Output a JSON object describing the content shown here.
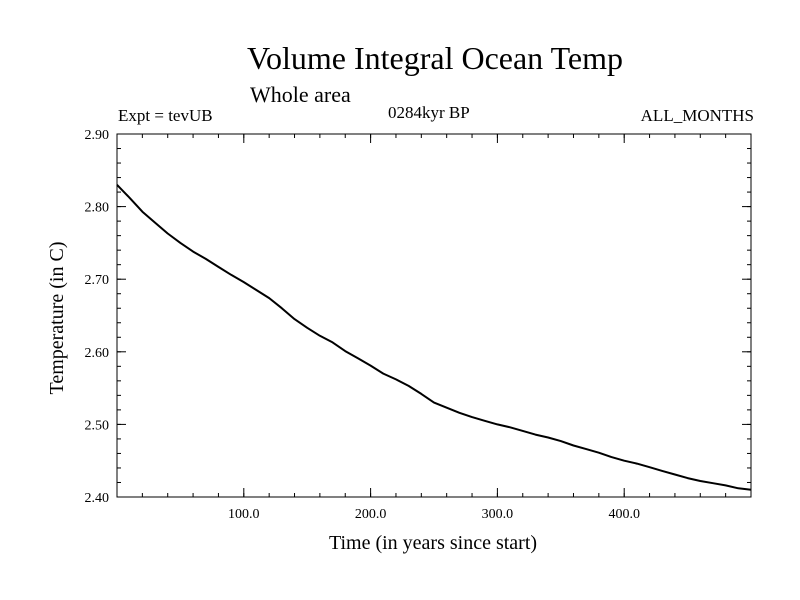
{
  "header": {
    "title": "Volume Integral Ocean Temp",
    "subtitle": "Whole area",
    "experiment": "Expt = tevUB",
    "period": "0284kyr BP",
    "months": "ALL_MONTHS"
  },
  "chart_data": {
    "type": "line",
    "title": "Volume Integral Ocean Temp",
    "subtitle": "Whole area",
    "xlabel": "Time (in years since start)",
    "ylabel": "Temperature (in C)",
    "xlim": [
      0,
      500
    ],
    "ylim": [
      2.4,
      2.9
    ],
    "xticks": [
      100,
      200,
      300,
      400
    ],
    "xtick_labels": [
      "100.0",
      "200.0",
      "300.0",
      "400.0"
    ],
    "yticks": [
      2.4,
      2.5,
      2.6,
      2.7,
      2.8,
      2.9
    ],
    "ytick_labels": [
      "2.40",
      "2.50",
      "2.60",
      "2.70",
      "2.80",
      "2.90"
    ],
    "grid": false,
    "series": [
      {
        "x": [
          0,
          10,
          20,
          30,
          40,
          50,
          60,
          70,
          80,
          90,
          100,
          110,
          120,
          130,
          140,
          150,
          160,
          170,
          180,
          190,
          200,
          210,
          220,
          230,
          240,
          250,
          260,
          270,
          280,
          290,
          300,
          310,
          320,
          330,
          340,
          350,
          360,
          370,
          380,
          390,
          400,
          410,
          420,
          430,
          440,
          450,
          460,
          470,
          480,
          490,
          500
        ],
        "y": [
          2.83,
          2.812,
          2.793,
          2.778,
          2.763,
          2.75,
          2.738,
          2.728,
          2.717,
          2.706,
          2.696,
          2.685,
          2.674,
          2.66,
          2.645,
          2.633,
          2.622,
          2.613,
          2.601,
          2.591,
          2.581,
          2.57,
          2.562,
          2.553,
          2.542,
          2.53,
          2.523,
          2.516,
          2.51,
          2.505,
          2.5,
          2.496,
          2.491,
          2.486,
          2.482,
          2.477,
          2.471,
          2.466,
          2.461,
          2.455,
          2.45,
          2.446,
          2.441,
          2.436,
          2.431,
          2.426,
          2.422,
          2.419,
          2.416,
          2.412,
          2.41
        ]
      }
    ]
  }
}
